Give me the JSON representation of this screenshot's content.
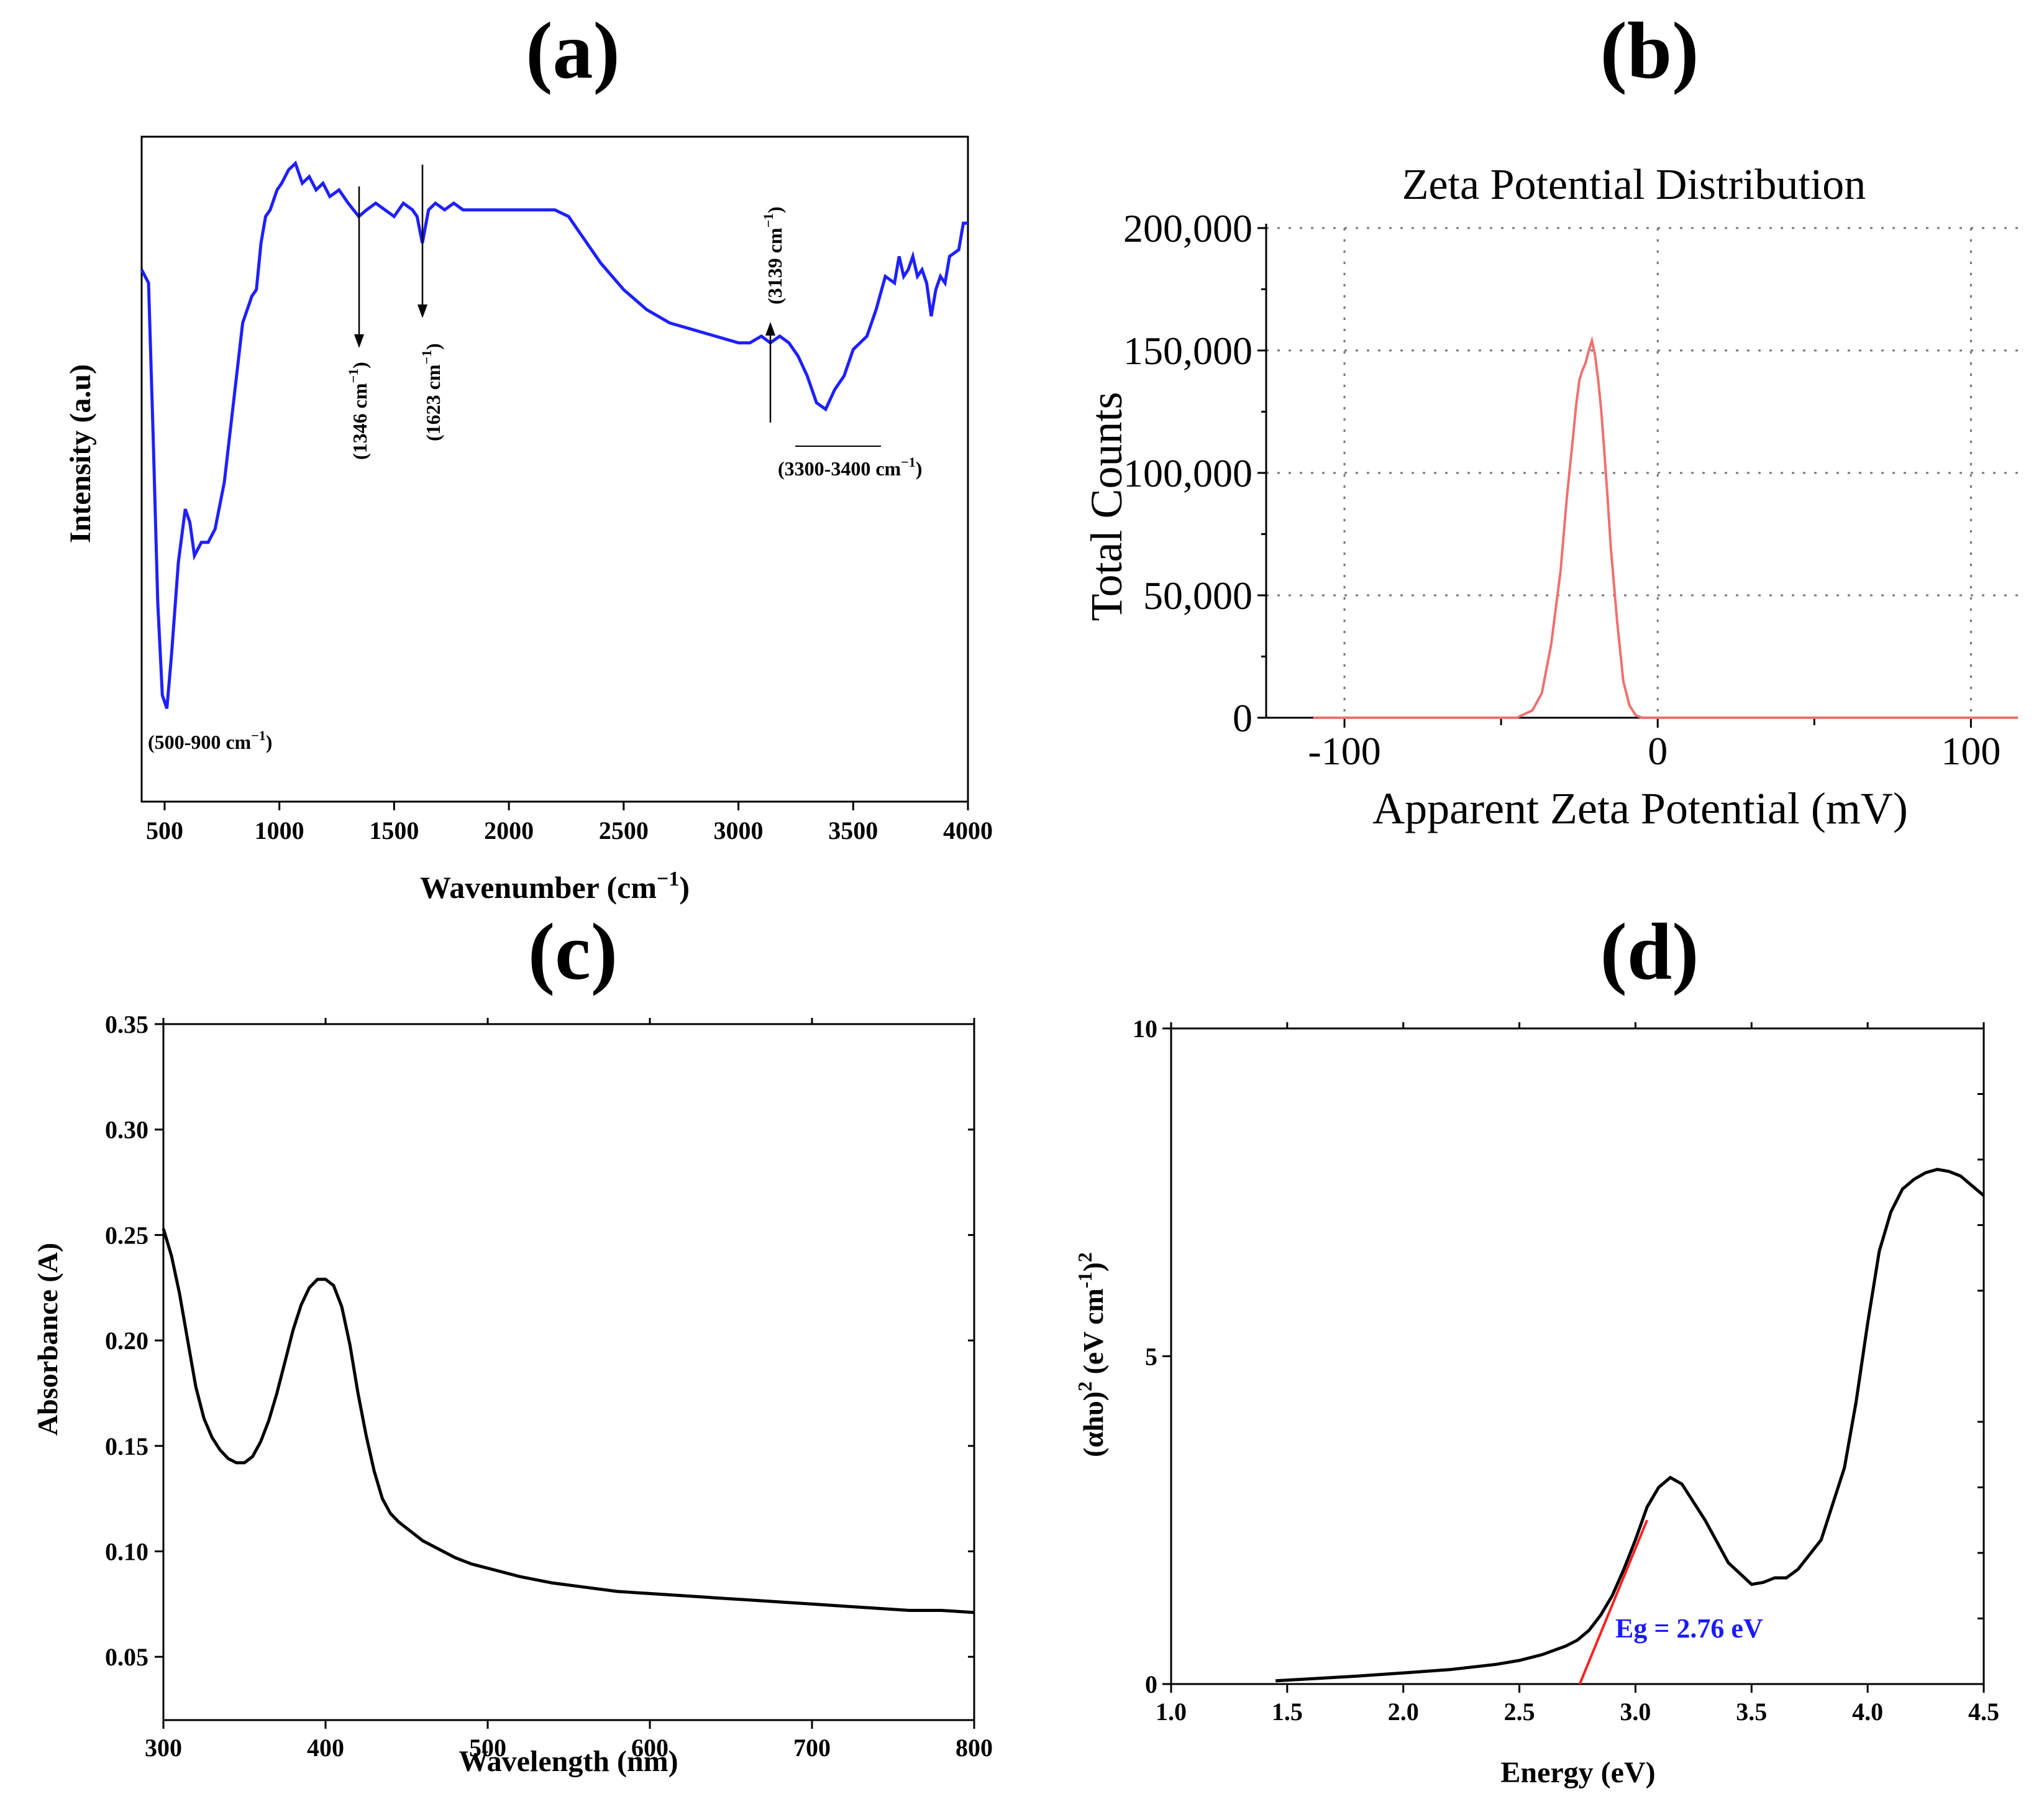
{
  "chart_data": [
    {
      "panel_label": "(a)",
      "type": "line",
      "title": "",
      "xlabel": "Wavenumber (cm",
      "xlabel_sup": "−1",
      "xlabel_tail": ")",
      "ylabel": "Intensity (a.u)",
      "xlim": [
        400,
        4000
      ],
      "ylim": [
        0,
        100
      ],
      "xticks": [
        500,
        1000,
        1500,
        2000,
        2500,
        3000,
        3500,
        4000
      ],
      "yticks": [],
      "series": [
        {
          "name": "FTIR spectrum",
          "color": "#1f1fff",
          "x": [
            400,
            430,
            450,
            470,
            490,
            510,
            530,
            560,
            590,
            610,
            630,
            660,
            690,
            720,
            760,
            800,
            840,
            880,
            900,
            920,
            940,
            960,
            990,
            1010,
            1040,
            1070,
            1100,
            1130,
            1160,
            1190,
            1220,
            1260,
            1300,
            1346,
            1380,
            1420,
            1460,
            1500,
            1540,
            1580,
            1600,
            1623,
            1650,
            1680,
            1720,
            1760,
            1800,
            1850,
            1900,
            2000,
            2100,
            2200,
            2260,
            2300,
            2400,
            2500,
            2600,
            2700,
            2800,
            2900,
            3000,
            3050,
            3100,
            3139,
            3180,
            3220,
            3260,
            3300,
            3340,
            3380,
            3420,
            3460,
            3500,
            3560,
            3600,
            3640,
            3680,
            3700,
            3720,
            3740,
            3760,
            3780,
            3800,
            3820,
            3840,
            3860,
            3880,
            3900,
            3920,
            3960,
            3980,
            4000
          ],
          "y": [
            80,
            78,
            55,
            30,
            16,
            14,
            22,
            36,
            44,
            42,
            37,
            39,
            39,
            41,
            48,
            60,
            72,
            76,
            77,
            84,
            88,
            89,
            92,
            93,
            95,
            96,
            93,
            94,
            92,
            93,
            91,
            92,
            90,
            88,
            89,
            90,
            89,
            88,
            90,
            89,
            88,
            84,
            89,
            90,
            89,
            90,
            89,
            89,
            89,
            89,
            89,
            89,
            88,
            86,
            81,
            77,
            74,
            72,
            71,
            70,
            69,
            69,
            70,
            69,
            70,
            69,
            67,
            64,
            60,
            59,
            62,
            64,
            68,
            70,
            74,
            79,
            78,
            82,
            79,
            80,
            82,
            79,
            80,
            78,
            73,
            77,
            79,
            78,
            82,
            83,
            87,
            87
          ]
        }
      ],
      "annotations": [
        {
          "text": "(500-900 cm",
          "sup": "−1",
          "tail": ")"
        },
        {
          "text": "(1346 cm",
          "sup": "−1",
          "tail": ")"
        },
        {
          "text": "(1623 cm",
          "sup": "−1",
          "tail": ")"
        },
        {
          "text": "(3139 cm",
          "sup": "−1",
          "tail": ")"
        },
        {
          "text": "(3300-3400 cm",
          "sup": "−1",
          "tail": ")"
        }
      ]
    },
    {
      "panel_label": "(b)",
      "type": "line",
      "title": "Zeta Potential Distribution",
      "xlabel": "Apparent Zeta Potential (mV)",
      "ylabel": "Total Counts",
      "xlim": [
        -125,
        115
      ],
      "ylim": [
        0,
        200000
      ],
      "xticks": [
        -100,
        0,
        100
      ],
      "xtick_labels": [
        "-100",
        "0",
        "100"
      ],
      "yticks": [
        0,
        50000,
        100000,
        150000,
        200000
      ],
      "ytick_labels": [
        "0",
        "50,000",
        "100,000",
        "150,000",
        "200,000"
      ],
      "grid": true,
      "series": [
        {
          "name": "Zeta distribution",
          "color": "#f07070",
          "x": [
            -110,
            -45,
            -40,
            -37,
            -34,
            -31,
            -29,
            -27,
            -26,
            -25,
            -24,
            -23,
            -22,
            -21,
            -20,
            -19,
            -18,
            -17,
            -16,
            -15,
            -13,
            -11,
            -9,
            -7,
            -5,
            115
          ],
          "y": [
            0,
            0,
            3000,
            10000,
            30000,
            60000,
            90000,
            115000,
            128000,
            138000,
            142000,
            145000,
            150000,
            154000,
            148000,
            138000,
            125000,
            108000,
            90000,
            70000,
            40000,
            15000,
            5000,
            1000,
            0,
            0
          ]
        }
      ]
    },
    {
      "panel_label": "(c)",
      "type": "line",
      "title": "",
      "xlabel": "Wavelength (nm)",
      "ylabel": "Absorbance (A)",
      "xlim": [
        300,
        800
      ],
      "ylim": [
        0.02,
        0.35
      ],
      "xticks": [
        300,
        400,
        500,
        600,
        700,
        800
      ],
      "yticks": [
        0.05,
        0.1,
        0.15,
        0.2,
        0.25,
        0.3,
        0.35
      ],
      "ytick_labels": [
        "0.05",
        "0.10",
        "0.15",
        "0.20",
        "0.25",
        "0.30",
        "0.35"
      ],
      "series": [
        {
          "name": "UV-Vis absorbance",
          "color": "#000000",
          "x": [
            300,
            305,
            310,
            315,
            320,
            325,
            330,
            335,
            340,
            345,
            350,
            355,
            360,
            365,
            370,
            375,
            380,
            385,
            390,
            395,
            400,
            405,
            410,
            415,
            420,
            425,
            430,
            435,
            440,
            445,
            450,
            460,
            470,
            480,
            490,
            500,
            520,
            540,
            560,
            580,
            600,
            620,
            640,
            660,
            680,
            700,
            720,
            740,
            760,
            780,
            800
          ],
          "y": [
            0.253,
            0.24,
            0.222,
            0.2,
            0.178,
            0.163,
            0.154,
            0.148,
            0.144,
            0.142,
            0.142,
            0.145,
            0.152,
            0.162,
            0.175,
            0.19,
            0.205,
            0.217,
            0.225,
            0.229,
            0.229,
            0.226,
            0.216,
            0.198,
            0.175,
            0.155,
            0.138,
            0.125,
            0.118,
            0.114,
            0.111,
            0.105,
            0.101,
            0.097,
            0.094,
            0.092,
            0.088,
            0.085,
            0.083,
            0.081,
            0.08,
            0.079,
            0.078,
            0.077,
            0.076,
            0.075,
            0.074,
            0.073,
            0.072,
            0.072,
            0.071
          ]
        }
      ]
    },
    {
      "panel_label": "(d)",
      "type": "line",
      "title": "",
      "xlabel": "Energy (eV)",
      "ylabel": "(αhυ)",
      "ylabel_sup": "2",
      "ylabel_mid": " (eV cm",
      "ylabel_sup2": "-1",
      "ylabel_tail": ")",
      "ylabel_sup3": "2",
      "xlim": [
        1.0,
        4.5
      ],
      "ylim": [
        0,
        10
      ],
      "xticks": [
        1.0,
        1.5,
        2.0,
        2.5,
        3.0,
        3.5,
        4.0,
        4.5
      ],
      "xtick_labels": [
        "1.0",
        "1.5",
        "2.0",
        "2.5",
        "3.0",
        "3.5",
        "4.0",
        "4.5"
      ],
      "yticks": [
        0,
        5,
        10
      ],
      "ytick_labels": [
        "0",
        "5",
        "10"
      ],
      "series": [
        {
          "name": "Tauc plot",
          "color": "#000000",
          "x": [
            1.45,
            1.6,
            1.8,
            2.0,
            2.2,
            2.4,
            2.5,
            2.6,
            2.7,
            2.75,
            2.8,
            2.85,
            2.9,
            2.95,
            3.0,
            3.05,
            3.1,
            3.15,
            3.2,
            3.3,
            3.4,
            3.5,
            3.55,
            3.6,
            3.65,
            3.7,
            3.8,
            3.9,
            3.95,
            4.0,
            4.05,
            4.1,
            4.15,
            4.2,
            4.25,
            4.3,
            4.35,
            4.4,
            4.45,
            4.5
          ],
          "y": [
            0.05,
            0.08,
            0.12,
            0.17,
            0.22,
            0.3,
            0.36,
            0.45,
            0.58,
            0.67,
            0.82,
            1.05,
            1.35,
            1.75,
            2.2,
            2.7,
            3.0,
            3.15,
            3.05,
            2.5,
            1.85,
            1.52,
            1.55,
            1.62,
            1.62,
            1.75,
            2.2,
            3.3,
            4.3,
            5.5,
            6.6,
            7.2,
            7.55,
            7.7,
            7.8,
            7.85,
            7.82,
            7.75,
            7.6,
            7.45
          ]
        },
        {
          "name": "Linear fit",
          "color": "#ff2020",
          "x": [
            2.76,
            3.05
          ],
          "y": [
            0,
            2.5
          ]
        }
      ],
      "annotations": [
        {
          "text": "Eg = 2.76 eV",
          "color": "#1a1aff"
        }
      ]
    }
  ]
}
